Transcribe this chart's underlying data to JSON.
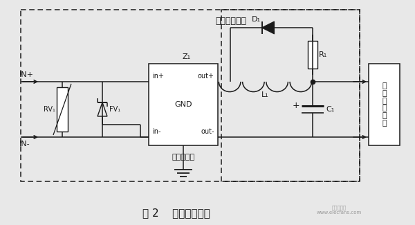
{
  "bg_color": "#e8e8e8",
  "fig_bg": "#e8e8e8",
  "title": "图 2    输入滤波电路",
  "title_fontsize": 11,
  "label_input_filter": "输入滤波电路",
  "label_dc_filter": "直流滤波器",
  "label_hf_circuit": "高\n频\n逆\n变\n电\n路",
  "label_in_plus": "IN+",
  "label_in_minus": "IN-",
  "label_rv": "RV₁",
  "label_fv": "FV₁",
  "label_z1": "Z₁",
  "label_d1": "D₁",
  "label_r1": "R₁",
  "label_l1": "L₁",
  "label_c1": "C₁",
  "label_in_plus_port": "in+",
  "label_out_plus_port": "out+",
  "label_gnd_port": "GND",
  "label_in_minus_port": "in-",
  "label_out_minus_port": "out-",
  "watermark_line1": "elecfans.com"
}
